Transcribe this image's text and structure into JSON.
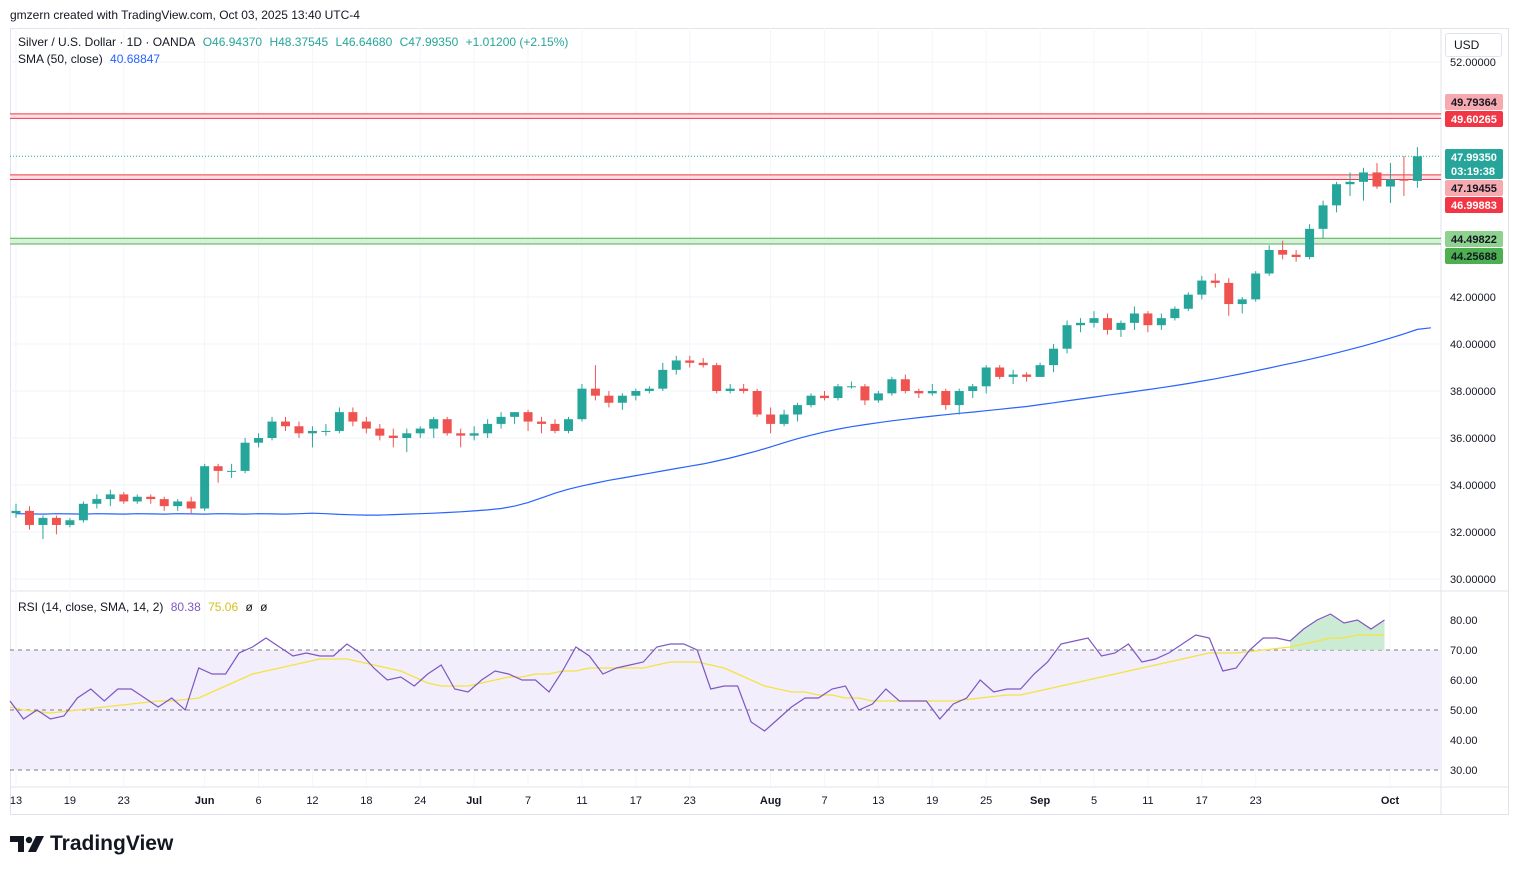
{
  "header": {
    "text": "gmzern created with TradingView.com, Oct 03, 2025 13:40 UTC-4"
  },
  "legend": {
    "symbol": "Silver / U.S. Dollar · 1D · OANDA",
    "open": "O46.94370",
    "high": "H48.37545",
    "low": "L46.64680",
    "close": "C47.99350",
    "change": "+1.01200 (+2.15%)",
    "sma_label": "SMA (50, close)",
    "sma_value": "40.68847",
    "rsi_label": "RSI (14, close, SMA, 14, 2)",
    "rsi_value": "80.38",
    "rsi_ma_value": "75.06",
    "rsi_extra1": "ø",
    "rsi_extra2": "ø"
  },
  "currency": "USD",
  "brand": "TradingView",
  "colors": {
    "up": "#26a69a",
    "down": "#ef5350",
    "sma": "#2962ff",
    "rsi": "#7e57c2",
    "rsi_ma": "#f5e342",
    "resistance": "#f23645",
    "support": "#4caf50"
  },
  "chart_data": [
    {
      "type": "candlestick",
      "x_tick_labels": [
        "13",
        "19",
        "23",
        "Jun",
        "6",
        "12",
        "18",
        "24",
        "Jul",
        "7",
        "11",
        "17",
        "23",
        "Aug",
        "7",
        "13",
        "19",
        "25",
        "Sep",
        "5",
        "11",
        "17",
        "23",
        "Oct"
      ],
      "y_tick_labels": [
        "30.00000",
        "32.00000",
        "34.00000",
        "36.00000",
        "38.00000",
        "40.00000",
        "42.00000",
        "52.00000"
      ],
      "ylim": [
        29.5,
        52.5
      ],
      "price_labels": [
        {
          "label": "49.79364",
          "value": 49.79364,
          "kind": "resistance"
        },
        {
          "label": "49.60265",
          "value": 49.60265,
          "kind": "resistance"
        },
        {
          "label": "47.99350",
          "value": 47.9935,
          "kind": "current"
        },
        {
          "label": "03:19:38",
          "value": 47.4,
          "kind": "countdown"
        },
        {
          "label": "47.19455",
          "value": 47.19455,
          "kind": "resistance"
        },
        {
          "label": "46.99883",
          "value": 46.99883,
          "kind": "resistance"
        },
        {
          "label": "44.49822",
          "value": 44.49822,
          "kind": "support"
        },
        {
          "label": "44.25688",
          "value": 44.25688,
          "kind": "support"
        }
      ],
      "candles": [
        [
          32.8,
          33.2,
          32.6,
          32.9
        ],
        [
          32.9,
          33.1,
          32.1,
          32.3
        ],
        [
          32.3,
          32.7,
          31.7,
          32.6
        ],
        [
          32.6,
          32.7,
          31.9,
          32.3
        ],
        [
          32.3,
          32.6,
          32.2,
          32.5
        ],
        [
          32.5,
          33.3,
          32.4,
          33.2
        ],
        [
          33.2,
          33.6,
          33.0,
          33.4
        ],
        [
          33.4,
          33.8,
          33.1,
          33.6
        ],
        [
          33.6,
          33.7,
          33.2,
          33.3
        ],
        [
          33.3,
          33.6,
          33.2,
          33.5
        ],
        [
          33.5,
          33.6,
          33.2,
          33.4
        ],
        [
          33.4,
          33.5,
          32.9,
          33.1
        ],
        [
          33.1,
          33.4,
          32.9,
          33.3
        ],
        [
          33.3,
          33.5,
          32.8,
          33.0
        ],
        [
          33.0,
          34.9,
          32.9,
          34.8
        ],
        [
          34.8,
          34.9,
          34.1,
          34.6
        ],
        [
          34.6,
          34.9,
          34.3,
          34.6
        ],
        [
          34.6,
          36.0,
          34.5,
          35.8
        ],
        [
          35.8,
          36.2,
          35.6,
          36.0
        ],
        [
          36.0,
          36.9,
          35.9,
          36.7
        ],
        [
          36.7,
          36.9,
          36.3,
          36.5
        ],
        [
          36.5,
          36.7,
          36.0,
          36.2
        ],
        [
          36.2,
          36.5,
          35.6,
          36.3
        ],
        [
          36.3,
          36.6,
          36.1,
          36.3
        ],
        [
          36.3,
          37.3,
          36.2,
          37.1
        ],
        [
          37.1,
          37.3,
          36.5,
          36.7
        ],
        [
          36.7,
          36.9,
          36.2,
          36.4
        ],
        [
          36.4,
          36.6,
          35.9,
          36.1
        ],
        [
          36.1,
          36.4,
          35.6,
          36.0
        ],
        [
          36.0,
          36.4,
          35.4,
          36.2
        ],
        [
          36.2,
          36.5,
          36.0,
          36.4
        ],
        [
          36.4,
          36.9,
          36.0,
          36.8
        ],
        [
          36.8,
          36.9,
          36.1,
          36.2
        ],
        [
          36.2,
          36.4,
          35.6,
          36.1
        ],
        [
          36.1,
          36.5,
          35.9,
          36.2
        ],
        [
          36.2,
          36.8,
          36.0,
          36.6
        ],
        [
          36.6,
          37.1,
          36.4,
          36.9
        ],
        [
          36.9,
          37.1,
          36.6,
          37.1
        ],
        [
          37.1,
          37.2,
          36.3,
          36.7
        ],
        [
          36.7,
          36.9,
          36.2,
          36.6
        ],
        [
          36.6,
          36.8,
          36.2,
          36.3
        ],
        [
          36.3,
          36.9,
          36.2,
          36.8
        ],
        [
          36.8,
          38.3,
          36.7,
          38.1
        ],
        [
          38.1,
          39.1,
          37.6,
          37.8
        ],
        [
          37.8,
          38.0,
          37.3,
          37.5
        ],
        [
          37.5,
          37.9,
          37.2,
          37.8
        ],
        [
          37.8,
          38.1,
          37.6,
          38.0
        ],
        [
          38.0,
          38.2,
          37.9,
          38.1
        ],
        [
          38.1,
          39.2,
          38.0,
          38.9
        ],
        [
          38.9,
          39.5,
          38.7,
          39.3
        ],
        [
          39.3,
          39.5,
          39.0,
          39.2
        ],
        [
          39.2,
          39.4,
          39.0,
          39.1
        ],
        [
          39.1,
          39.2,
          37.9,
          38.0
        ],
        [
          38.0,
          38.3,
          37.9,
          38.1
        ],
        [
          38.1,
          38.3,
          37.9,
          38.0
        ],
        [
          38.0,
          38.1,
          36.9,
          37.0
        ],
        [
          37.0,
          37.3,
          36.2,
          36.6
        ],
        [
          36.6,
          37.2,
          36.5,
          37.0
        ],
        [
          37.0,
          37.5,
          36.7,
          37.4
        ],
        [
          37.4,
          37.9,
          37.3,
          37.8
        ],
        [
          37.8,
          38.0,
          37.6,
          37.7
        ],
        [
          37.7,
          38.3,
          37.6,
          38.2
        ],
        [
          38.2,
          38.4,
          38.1,
          38.2
        ],
        [
          38.2,
          38.3,
          37.4,
          37.6
        ],
        [
          37.6,
          38.0,
          37.5,
          37.9
        ],
        [
          37.9,
          38.6,
          37.8,
          38.5
        ],
        [
          38.5,
          38.7,
          37.9,
          38.0
        ],
        [
          38.0,
          38.1,
          37.7,
          37.9
        ],
        [
          37.9,
          38.3,
          37.8,
          38.0
        ],
        [
          38.0,
          38.1,
          37.2,
          37.4
        ],
        [
          37.4,
          38.1,
          37.0,
          38.0
        ],
        [
          38.0,
          38.3,
          37.7,
          38.2
        ],
        [
          38.2,
          39.1,
          37.9,
          39.0
        ],
        [
          39.0,
          39.1,
          38.5,
          38.6
        ],
        [
          38.6,
          38.9,
          38.3,
          38.7
        ],
        [
          38.7,
          38.8,
          38.4,
          38.6
        ],
        [
          38.6,
          39.2,
          38.6,
          39.1
        ],
        [
          39.1,
          40.0,
          38.8,
          39.8
        ],
        [
          39.8,
          41.0,
          39.6,
          40.8
        ],
        [
          40.8,
          41.1,
          40.5,
          40.9
        ],
        [
          40.9,
          41.4,
          40.7,
          41.1
        ],
        [
          41.1,
          41.3,
          40.4,
          40.6
        ],
        [
          40.6,
          41.0,
          40.3,
          40.9
        ],
        [
          40.9,
          41.6,
          40.6,
          41.3
        ],
        [
          41.3,
          41.4,
          40.5,
          40.8
        ],
        [
          40.8,
          41.3,
          40.6,
          41.1
        ],
        [
          41.1,
          41.6,
          41.0,
          41.5
        ],
        [
          41.5,
          42.2,
          41.4,
          42.1
        ],
        [
          42.1,
          42.9,
          41.9,
          42.7
        ],
        [
          42.7,
          43.0,
          42.4,
          42.6
        ],
        [
          42.6,
          42.8,
          41.2,
          41.7
        ],
        [
          41.7,
          42.0,
          41.3,
          41.9
        ],
        [
          41.9,
          43.1,
          41.8,
          43.0
        ],
        [
          43.0,
          44.2,
          42.9,
          44.0
        ],
        [
          44.0,
          44.4,
          43.6,
          43.8
        ],
        [
          43.8,
          44.0,
          43.5,
          43.7
        ],
        [
          43.7,
          45.1,
          43.6,
          44.9
        ],
        [
          44.9,
          46.1,
          44.5,
          45.9
        ],
        [
          45.9,
          46.9,
          45.6,
          46.8
        ],
        [
          46.8,
          47.3,
          46.3,
          46.9
        ],
        [
          46.9,
          47.5,
          46.1,
          47.3
        ],
        [
          47.3,
          47.7,
          46.6,
          46.7
        ],
        [
          46.7,
          47.7,
          46.0,
          47.0
        ],
        [
          47.0,
          48.0,
          46.3,
          46.95
        ],
        [
          46.94,
          48.38,
          46.65,
          47.99
        ]
      ],
      "sma": [
        32.8,
        32.78,
        32.75,
        32.73,
        32.72,
        32.72,
        32.74,
        32.76,
        32.78,
        32.8,
        32.83,
        32.86,
        32.9,
        32.94,
        33.0,
        33.1,
        33.25,
        33.45,
        33.65,
        33.82,
        33.96,
        34.08,
        34.2,
        34.3,
        34.4,
        34.5,
        34.6,
        34.7,
        34.8,
        34.9,
        35.02,
        35.15,
        35.3,
        35.45,
        35.62,
        35.8,
        35.97,
        36.12,
        36.26,
        36.38,
        36.48,
        36.57,
        36.65,
        36.73,
        36.8,
        36.87,
        36.93,
        36.99,
        37.05,
        37.1,
        37.16,
        37.22,
        37.28,
        37.34,
        37.42,
        37.5,
        37.58,
        37.66,
        37.74,
        37.82,
        37.9,
        37.98,
        38.06,
        38.14,
        38.23,
        38.32,
        38.42,
        38.52,
        38.63,
        38.74,
        38.86,
        38.98,
        39.1,
        39.22,
        39.35,
        39.48,
        39.62,
        39.77,
        39.92,
        40.08,
        40.25,
        40.43,
        40.62,
        40.69
      ],
      "sma_start_index": 22
    },
    {
      "type": "line",
      "name": "RSI",
      "y_tick_labels": [
        "30.00",
        "40.00",
        "50.00",
        "60.00",
        "70.00",
        "80.00"
      ],
      "ylim": [
        27,
        84
      ],
      "levels": [
        30,
        50,
        70
      ],
      "rsi": [
        53,
        47,
        50,
        47,
        48,
        54,
        57,
        53,
        57,
        57,
        54,
        51,
        54,
        50,
        64,
        62,
        62,
        69,
        71,
        74,
        71,
        68,
        69,
        68,
        68,
        72,
        69,
        64,
        60,
        61,
        58,
        62,
        65,
        57,
        56,
        60,
        63,
        62,
        60,
        60,
        56,
        63,
        71,
        68,
        62,
        64,
        65,
        66,
        71,
        72,
        72,
        70,
        57,
        58,
        58,
        46,
        43,
        47,
        51,
        54,
        54,
        57,
        58,
        50,
        52,
        57,
        53,
        53,
        53,
        47,
        52,
        54,
        60,
        56,
        57,
        57,
        62,
        66,
        72,
        73,
        74,
        68,
        69,
        72,
        66,
        67,
        69,
        72,
        75,
        74,
        63,
        64,
        70,
        74,
        74,
        73,
        77,
        80,
        82,
        79,
        80,
        77,
        80
      ],
      "rsi_ma": [
        51,
        50,
        49.5,
        49,
        49.5,
        50,
        50.5,
        51,
        51.5,
        52,
        52.5,
        53,
        53,
        53.5,
        54,
        56,
        58,
        60,
        62,
        63,
        64,
        65,
        66,
        67,
        67,
        67,
        66,
        65,
        64,
        63,
        61,
        59,
        58,
        58,
        58,
        59,
        60,
        61,
        61,
        62,
        62,
        63,
        63,
        64,
        64,
        64,
        64,
        64,
        65,
        66,
        66,
        66,
        65,
        64,
        62,
        60,
        58,
        57,
        56,
        56,
        55,
        55,
        54,
        54,
        53,
        53,
        53,
        53,
        53,
        53,
        53,
        53.5,
        54,
        54.5,
        55,
        55,
        56,
        57,
        58,
        59,
        60,
        61,
        62,
        63,
        64,
        65,
        66,
        67,
        68,
        69,
        69,
        69,
        69.5,
        70,
        70.5,
        71,
        72,
        73,
        74,
        74,
        75,
        75,
        75.06
      ]
    }
  ]
}
